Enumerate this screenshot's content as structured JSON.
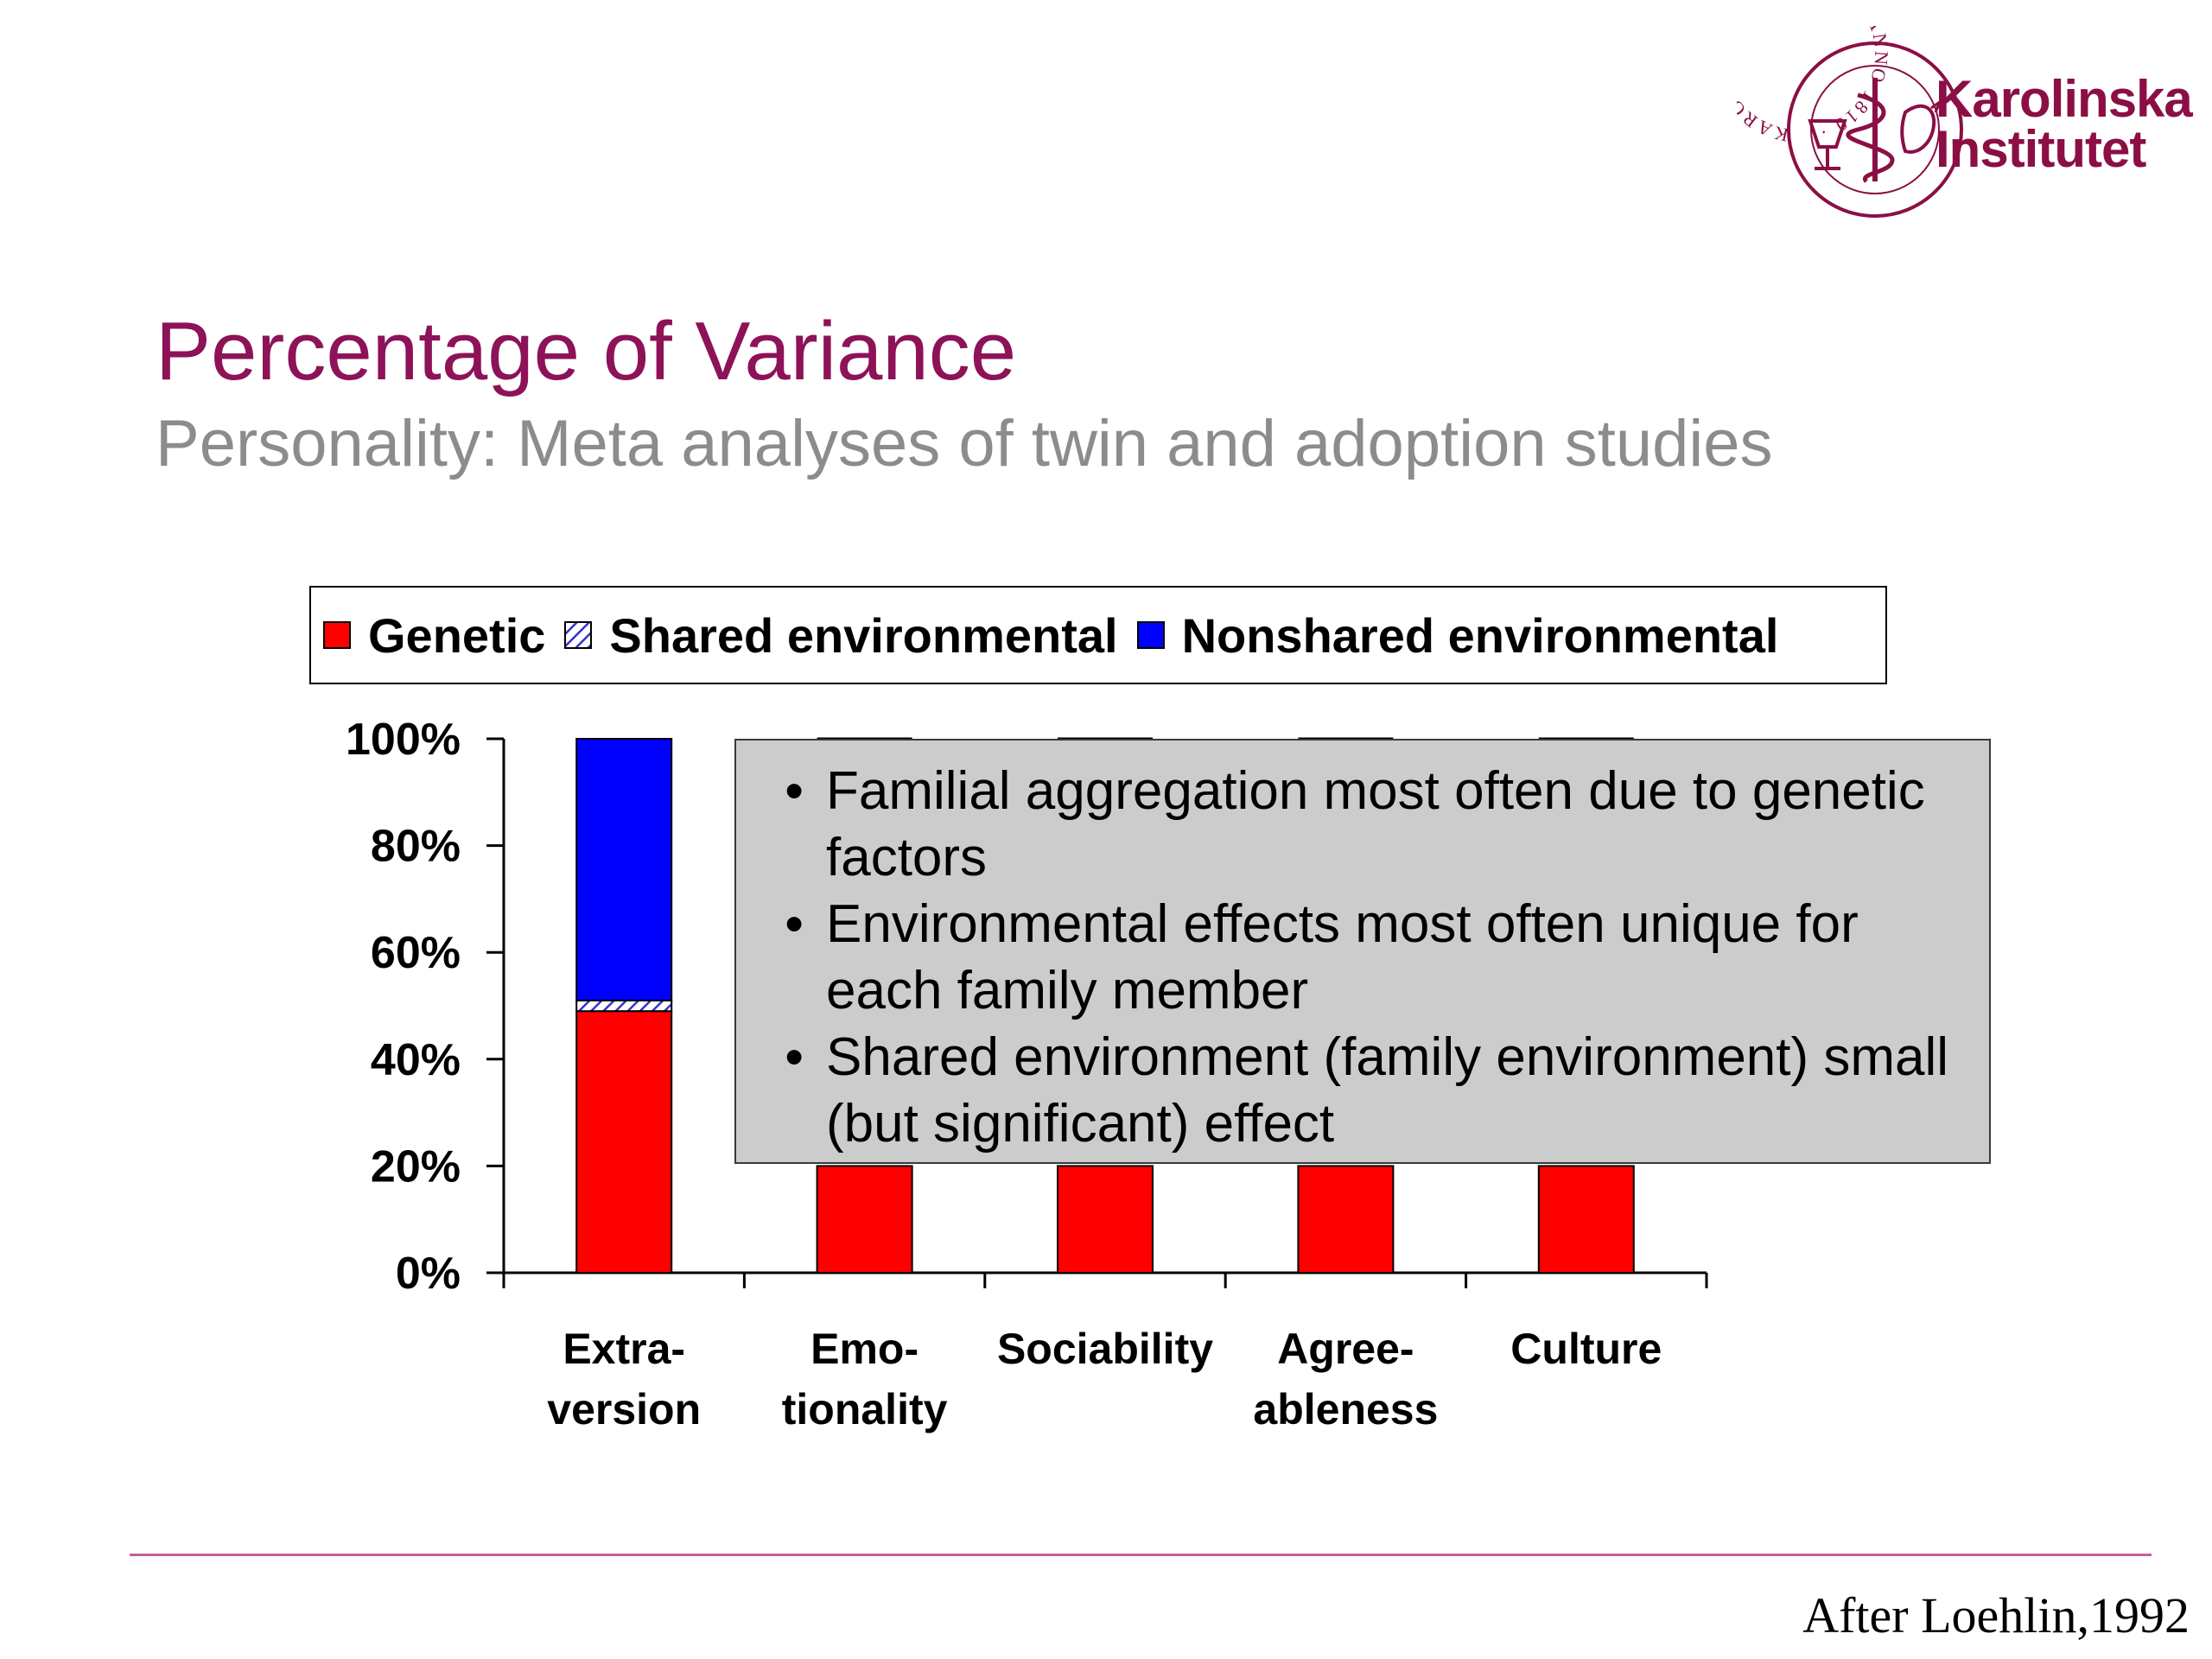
{
  "logo": {
    "seal_text": "KAROLINSKA INSTITUTET · ANNO 1810 ·",
    "line1": "Karolinska",
    "line2": "Institutet",
    "color": "#8b0f45"
  },
  "slide": {
    "title": "Percentage of Variance",
    "subtitle": "Personality: Meta analyses of twin and adoption studies",
    "source": "After Loehlin,1992"
  },
  "legend": {
    "items": [
      {
        "label": "Genetic",
        "pattern": "solid",
        "color": "#ff0000"
      },
      {
        "label": "Shared environmental",
        "pattern": "hatched",
        "color": "#3333cc"
      },
      {
        "label": "Nonshared environmental",
        "pattern": "solid",
        "color": "#0000ff"
      }
    ]
  },
  "callout": {
    "bullets": [
      "Familial aggregation most often due to genetic factors",
      "Environmental effects most often unique for each family member",
      "Shared environment (family environment) small (but significant) effect"
    ]
  },
  "chart_data": {
    "type": "bar",
    "stacked": true,
    "categories": [
      [
        "Extra-",
        "version"
      ],
      [
        "Emo-",
        "tionality"
      ],
      [
        "Sociability"
      ],
      [
        "Agree-",
        "ableness"
      ],
      [
        "Culture"
      ]
    ],
    "series": [
      {
        "name": "Genetic",
        "color": "#ff0000",
        "values": [
          49,
          20,
          20,
          20,
          20
        ]
      },
      {
        "name": "Shared environmental",
        "color": "#3333cc",
        "values": [
          2,
          null,
          null,
          null,
          null
        ]
      },
      {
        "name": "Nonshared environmental",
        "color": "#0000ff",
        "values": [
          49,
          null,
          null,
          null,
          null
        ]
      }
    ],
    "yticks": [
      "0%",
      "20%",
      "40%",
      "60%",
      "80%",
      "100%"
    ],
    "ylim": [
      0,
      100
    ],
    "legend_position": "top",
    "grid": false
  }
}
